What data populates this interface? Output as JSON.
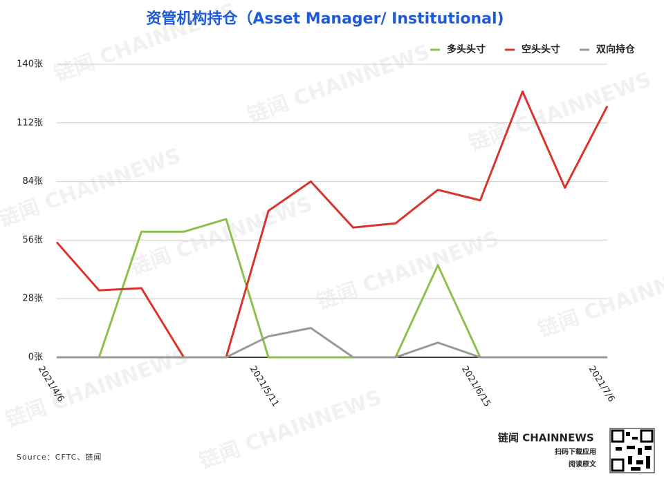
{
  "chart_data": {
    "type": "line",
    "title": "资管机构持仓（Asset Manager/ Institutional)",
    "categories": [
      "2021/4/6",
      null,
      null,
      null,
      null,
      "2021/5/11",
      null,
      null,
      null,
      null,
      "2021/6/15",
      null,
      null,
      "2021/7/6"
    ],
    "series": [
      {
        "name": "多头头寸",
        "color": "#8dbf4e",
        "values": [
          0,
          0,
          60,
          60,
          66,
          0,
          0,
          0,
          0,
          44,
          0,
          0,
          0,
          0
        ]
      },
      {
        "name": "空头头寸",
        "color": "#d9342b",
        "values": [
          55,
          32,
          33,
          0,
          0,
          70,
          84,
          62,
          64,
          80,
          75,
          127,
          81,
          120
        ]
      },
      {
        "name": "双向持仓",
        "color": "#999999",
        "values": [
          0,
          0,
          0,
          0,
          0,
          10,
          14,
          0,
          0,
          7,
          0,
          0,
          0,
          0
        ]
      }
    ],
    "ylim": [
      0,
      140
    ],
    "yticks": [
      {
        "value": 0,
        "label": "0张"
      },
      {
        "value": 28,
        "label": "28张"
      },
      {
        "value": 56,
        "label": "56张"
      },
      {
        "value": 84,
        "label": "84张"
      },
      {
        "value": 112,
        "label": "112张"
      },
      {
        "value": 140,
        "label": "140张"
      }
    ],
    "grid": true,
    "legend": "top-right",
    "source": "Source：CFTC、链闻",
    "watermark": "链闻 CHAINNEWS",
    "brand": "链闻 CHAINNEWS",
    "brand_line1": "扫码下载应用",
    "brand_line2": "阅读原文"
  }
}
